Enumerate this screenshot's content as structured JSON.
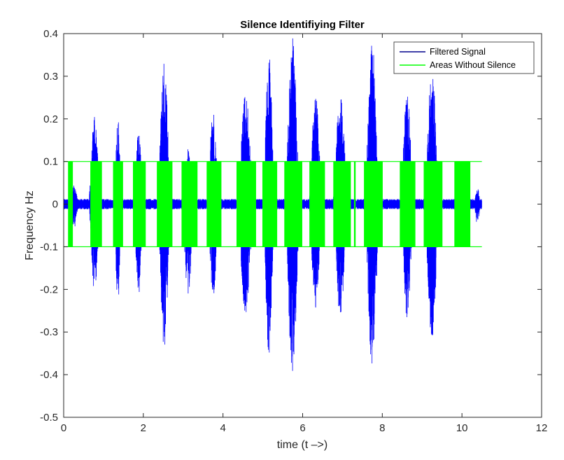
{
  "chart_data": {
    "type": "line",
    "title": "Silence Identifiying Filter",
    "xlabel": "time (t –>)",
    "ylabel": "Frequency Hz",
    "xlim": [
      0,
      12
    ],
    "ylim": [
      -0.5,
      0.4
    ],
    "xticks": [
      0,
      2,
      4,
      6,
      8,
      10,
      12
    ],
    "yticks": [
      -0.5,
      -0.4,
      -0.3,
      -0.2,
      -0.1,
      0,
      0.1,
      0.2,
      0.3,
      0.4
    ],
    "xtick_labels": [
      "0",
      "2",
      "4",
      "6",
      "8",
      "10",
      "12"
    ],
    "ytick_labels": [
      "-0.5",
      "-0.4",
      "-0.3",
      "-0.2",
      "-0.1",
      "0",
      "0.1",
      "0.2",
      "0.3",
      "0.4"
    ],
    "grid": false,
    "legend_position": "top-right",
    "series": [
      {
        "name": "Filtered Signal",
        "color": "#0000ff",
        "legend_color": "#00008b",
        "x_range": [
          0,
          10.5
        ],
        "noise_amplitude": 0.012,
        "bursts": [
          {
            "start": 0.12,
            "end": 0.42,
            "peak": 0.05,
            "trough": -0.06
          },
          {
            "start": 0.62,
            "end": 0.98,
            "peak": 0.21,
            "trough": -0.21
          },
          {
            "start": 1.25,
            "end": 1.5,
            "peak": 0.21,
            "trough": -0.24
          },
          {
            "start": 1.75,
            "end": 2.05,
            "peak": 0.17,
            "trough": -0.22
          },
          {
            "start": 2.35,
            "end": 2.75,
            "peak": 0.34,
            "trough": -0.34
          },
          {
            "start": 2.95,
            "end": 3.35,
            "peak": 0.13,
            "trough": -0.21
          },
          {
            "start": 3.6,
            "end": 3.95,
            "peak": 0.22,
            "trough": -0.22
          },
          {
            "start": 4.35,
            "end": 4.85,
            "peak": 0.26,
            "trough": -0.26
          },
          {
            "start": 5.0,
            "end": 5.35,
            "peak": 0.36,
            "trough": -0.36
          },
          {
            "start": 5.55,
            "end": 6.0,
            "peak": 0.39,
            "trough": -0.41
          },
          {
            "start": 6.15,
            "end": 6.55,
            "peak": 0.26,
            "trough": -0.25
          },
          {
            "start": 6.75,
            "end": 7.2,
            "peak": 0.27,
            "trough": -0.27
          },
          {
            "start": 7.55,
            "end": 8.0,
            "peak": 0.39,
            "trough": -0.39
          },
          {
            "start": 8.45,
            "end": 8.85,
            "peak": 0.26,
            "trough": -0.27
          },
          {
            "start": 9.05,
            "end": 9.5,
            "peak": 0.32,
            "trough": -0.32
          },
          {
            "start": 9.8,
            "end": 10.2,
            "peak": 0.09,
            "trough": -0.1
          },
          {
            "start": 10.3,
            "end": 10.5,
            "peak": 0.04,
            "trough": -0.05
          }
        ]
      },
      {
        "name": "Areas Without Silence",
        "color": "#00ff00",
        "high": 0.1,
        "low": -0.1,
        "x_range": [
          0,
          10.5
        ],
        "regions": [
          [
            0.12,
            0.22
          ],
          [
            0.68,
            0.95
          ],
          [
            1.25,
            1.48
          ],
          [
            1.75,
            2.05
          ],
          [
            2.35,
            2.72
          ],
          [
            2.97,
            3.35
          ],
          [
            3.6,
            3.95
          ],
          [
            4.35,
            4.82
          ],
          [
            5.0,
            5.35
          ],
          [
            5.55,
            5.98
          ],
          [
            6.18,
            6.55
          ],
          [
            6.78,
            7.2
          ],
          [
            7.3,
            7.32
          ],
          [
            7.55,
            8.0
          ],
          [
            8.45,
            8.82
          ],
          [
            9.05,
            9.5
          ],
          [
            9.82,
            10.2
          ]
        ]
      }
    ]
  }
}
